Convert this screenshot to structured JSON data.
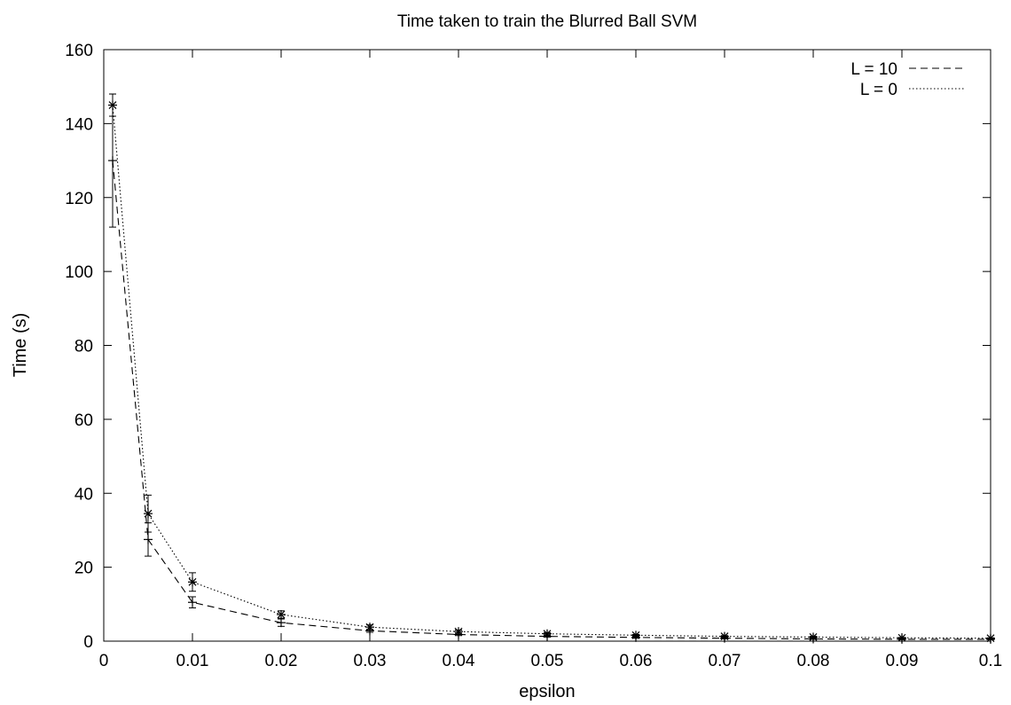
{
  "chart_data": {
    "type": "line",
    "title": "Time taken to train the Blurred Ball SVM",
    "xlabel": "epsilon",
    "ylabel": "Time (s)",
    "xlim": [
      0,
      0.1
    ],
    "ylim": [
      0,
      160
    ],
    "xticks": [
      0,
      0.01,
      0.02,
      0.03,
      0.04,
      0.05,
      0.06,
      0.07,
      0.08,
      0.09,
      0.1
    ],
    "xtick_labels": [
      "0",
      "0.01",
      "0.02",
      "0.03",
      "0.04",
      "0.05",
      "0.06",
      "0.07",
      "0.08",
      "0.09",
      "0.1"
    ],
    "yticks": [
      0,
      20,
      40,
      60,
      80,
      100,
      120,
      140,
      160
    ],
    "ytick_labels": [
      "0",
      "20",
      "40",
      "60",
      "80",
      "100",
      "120",
      "140",
      "160"
    ],
    "grid": false,
    "legend_position": "top-right",
    "x": [
      0.001,
      0.005,
      0.01,
      0.02,
      0.03,
      0.04,
      0.05,
      0.06,
      0.07,
      0.08,
      0.09,
      0.1
    ],
    "series": [
      {
        "name": "L = 10",
        "line_style": "dashed",
        "marker": "plus",
        "values": [
          130,
          27.5,
          10.5,
          5,
          2.8,
          1.8,
          1.3,
          1,
          0.8,
          0.6,
          0.5,
          0.5
        ],
        "errors": [
          18,
          4.5,
          1.5,
          1,
          0.4,
          0.3,
          0.2,
          0.2,
          0.2,
          0.1,
          0.1,
          0.1
        ]
      },
      {
        "name": "L = 0",
        "line_style": "dotted",
        "marker": "asterisk",
        "values": [
          145,
          34.5,
          16,
          7.2,
          3.8,
          2.6,
          2,
          1.6,
          1.3,
          1.1,
          0.9,
          0.8
        ],
        "errors": [
          3,
          5,
          2.5,
          1,
          0.6,
          0.4,
          0.3,
          0.2,
          0.2,
          0.2,
          0.1,
          0.1
        ]
      }
    ]
  }
}
